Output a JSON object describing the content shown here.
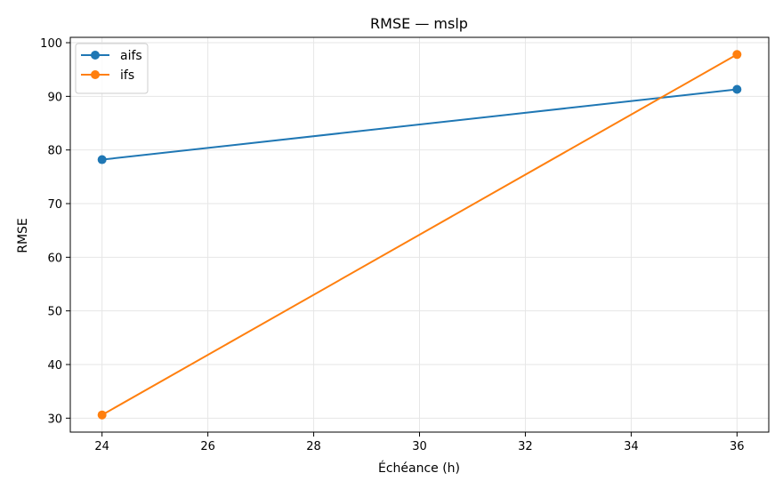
{
  "chart_data": {
    "type": "line",
    "title": "RMSE — mslp",
    "xlabel": "Échéance (h)",
    "ylabel": "RMSE",
    "xlim": [
      23.4,
      36.6
    ],
    "ylim": [
      27.4,
      101.0
    ],
    "xticks": [
      24,
      26,
      28,
      30,
      32,
      34,
      36
    ],
    "yticks": [
      30,
      40,
      50,
      60,
      70,
      80,
      90,
      100
    ],
    "grid": true,
    "legend_position": "top-left",
    "series": [
      {
        "name": "aifs",
        "color": "#1f77b4",
        "x": [
          24,
          36
        ],
        "y": [
          78.2,
          91.3
        ]
      },
      {
        "name": "ifs",
        "color": "#ff7f0e",
        "x": [
          24,
          36
        ],
        "y": [
          30.6,
          97.8
        ]
      }
    ]
  }
}
